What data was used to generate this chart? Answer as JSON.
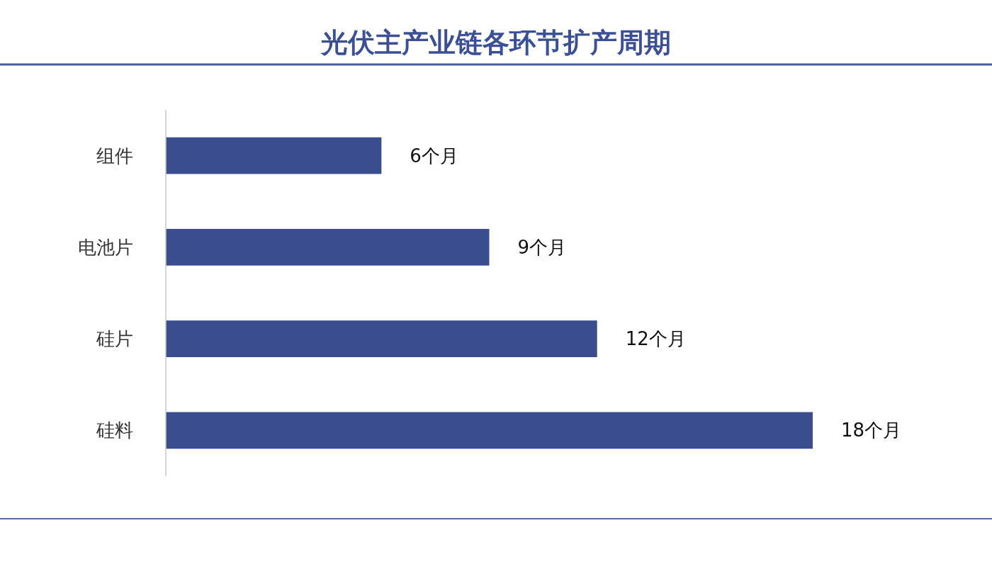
{
  "chart_data": {
    "type": "bar",
    "orientation": "horizontal",
    "title": "光伏主产业链各环节扩产周期",
    "categories": [
      "组件",
      "电池片",
      "硅片",
      "硅料"
    ],
    "values": [
      6,
      9,
      12,
      18
    ],
    "value_labels": [
      "6个月",
      "9个月",
      "12个月",
      "18个月"
    ],
    "color": "#3a4d8f"
  }
}
